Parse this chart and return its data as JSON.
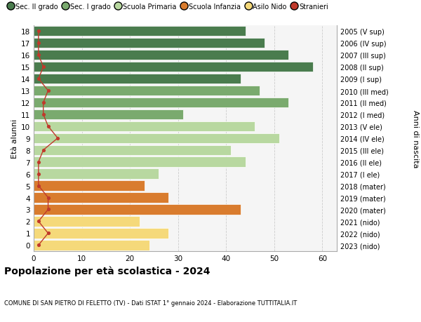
{
  "ages": [
    18,
    17,
    16,
    15,
    14,
    13,
    12,
    11,
    10,
    9,
    8,
    7,
    6,
    5,
    4,
    3,
    2,
    1,
    0
  ],
  "right_labels": [
    "2005 (V sup)",
    "2006 (IV sup)",
    "2007 (III sup)",
    "2008 (II sup)",
    "2009 (I sup)",
    "2010 (III med)",
    "2011 (II med)",
    "2012 (I med)",
    "2013 (V ele)",
    "2014 (IV ele)",
    "2015 (III ele)",
    "2016 (II ele)",
    "2017 (I ele)",
    "2018 (mater)",
    "2019 (mater)",
    "2020 (mater)",
    "2021 (nido)",
    "2022 (nido)",
    "2023 (nido)"
  ],
  "bar_values": [
    44,
    48,
    53,
    58,
    43,
    47,
    53,
    31,
    46,
    51,
    41,
    44,
    26,
    23,
    28,
    43,
    22,
    28,
    24
  ],
  "bar_colors": [
    "#4a7c4e",
    "#4a7c4e",
    "#4a7c4e",
    "#4a7c4e",
    "#4a7c4e",
    "#7aaa6e",
    "#7aaa6e",
    "#7aaa6e",
    "#b8d8a0",
    "#b8d8a0",
    "#b8d8a0",
    "#b8d8a0",
    "#b8d8a0",
    "#d97c2e",
    "#d97c2e",
    "#d97c2e",
    "#f5d97a",
    "#f5d97a",
    "#f5d97a"
  ],
  "stranieri_values": [
    1,
    1,
    1,
    2,
    1,
    3,
    2,
    2,
    3,
    5,
    2,
    1,
    1,
    1,
    3,
    3,
    1,
    3,
    1
  ],
  "stranieri_color": "#c0392b",
  "legend_labels": [
    "Sec. II grado",
    "Sec. I grado",
    "Scuola Primaria",
    "Scuola Infanzia",
    "Asilo Nido",
    "Stranieri"
  ],
  "legend_colors": [
    "#4a7c4e",
    "#7aaa6e",
    "#b8d8a0",
    "#d97c2e",
    "#f5d97a",
    "#c0392b"
  ],
  "title": "Popolazione per età scolastica - 2024",
  "subtitle": "COMUNE DI SAN PIETRO DI FELETTO (TV) - Dati ISTAT 1° gennaio 2024 - Elaborazione TUTTITALIA.IT",
  "ylabel_left": "Età alunni",
  "ylabel_right": "Anni di nascita",
  "xlim": [
    0,
    63
  ],
  "background_color": "#ffffff",
  "plot_bg_color": "#f5f5f5"
}
